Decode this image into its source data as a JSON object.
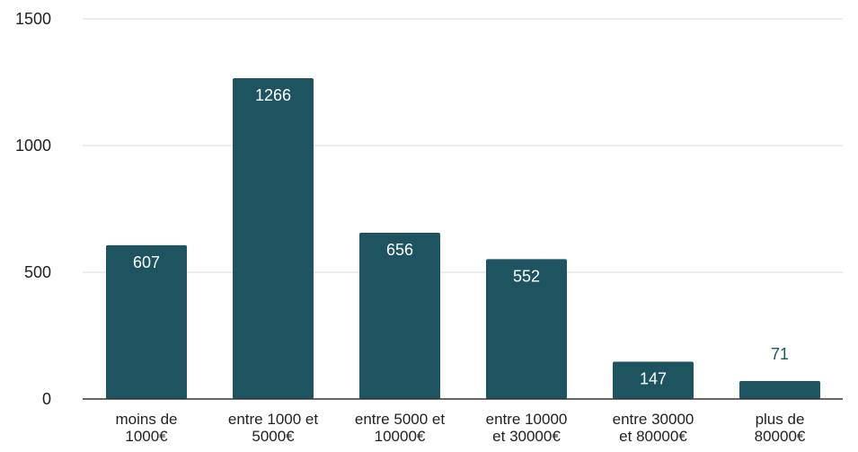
{
  "chart_data": {
    "type": "bar",
    "categories": [
      [
        "moins de",
        "1000€"
      ],
      [
        "entre 1000 et",
        "5000€"
      ],
      [
        "entre 5000 et",
        "10000€"
      ],
      [
        "entre 10000",
        "et 30000€"
      ],
      [
        "entre 30000",
        "et 80000€"
      ],
      [
        "plus de",
        "80000€"
      ]
    ],
    "values": [
      607,
      1266,
      656,
      552,
      147,
      71
    ],
    "data_labels": [
      "607",
      "1266",
      "656",
      "552",
      "147",
      "71"
    ],
    "yticks": [
      0,
      500,
      1000,
      1500
    ],
    "ytick_labels": [
      "0",
      "500",
      "1000",
      "1500"
    ],
    "ylim": [
      0,
      1500
    ],
    "grid": true,
    "bar_color": "#1e5460",
    "label_color_inside": "#ffffff",
    "label_color_outside": "#1f5560",
    "title": "",
    "xlabel": "",
    "ylabel": ""
  }
}
